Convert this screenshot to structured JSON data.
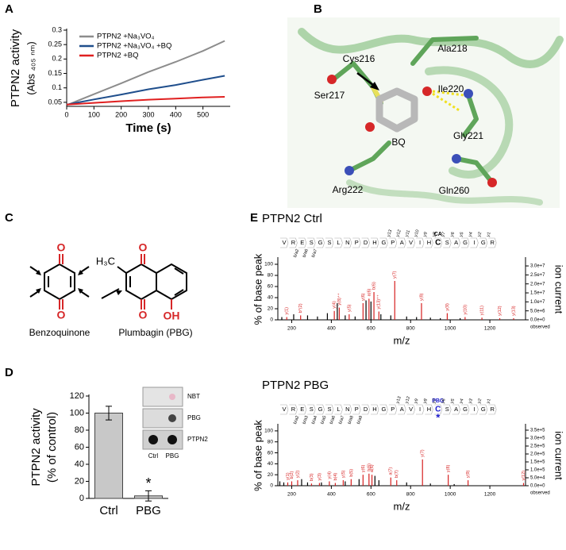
{
  "panel_letters": [
    "A",
    "B",
    "C",
    "D",
    "E"
  ],
  "structure_labels": [
    "Cys216",
    "Ala218",
    "Ser217",
    "Ile220",
    "BQ",
    "Arg222",
    "Gly221",
    "Gln260"
  ],
  "compounds": [
    "Benzoquinone",
    "Plumbagin (PBG)"
  ],
  "atoms": [
    "O",
    "O",
    "O",
    "O",
    "H₃C",
    "OH"
  ],
  "blot": {
    "rows": [
      "NBT",
      "PBG",
      "PTPN2"
    ],
    "columns": [
      "Ctrl",
      "PBG"
    ]
  },
  "chart_data": [
    {
      "type": "line",
      "xlabel": "Time (s)",
      "ylabel": [
        "PTPN2 activity",
        "(Abs ₄₀₅ ₙₘ)"
      ],
      "x": [
        0,
        100,
        200,
        300,
        400,
        500,
        580
      ],
      "xlim": [
        0,
        600
      ],
      "xticks": [
        0,
        100,
        200,
        300,
        400,
        500
      ],
      "ylim": [
        0.036,
        0.3
      ],
      "yticks": [
        0.05,
        0.1,
        0.15,
        0.2,
        0.25,
        0.3
      ],
      "series": [
        {
          "name": "PTPN2 +Na₃VO₄",
          "color": "#8c8c8c",
          "values": [
            0.04,
            0.078,
            0.116,
            0.155,
            0.19,
            0.228,
            0.263
          ]
        },
        {
          "name": "PTPN2 +Na₃VO₄ +BQ",
          "color": "#1f4e8c",
          "values": [
            0.042,
            0.06,
            0.077,
            0.095,
            0.11,
            0.128,
            0.142
          ]
        },
        {
          "name": "PTPN2 +BQ",
          "color": "#e02020",
          "values": [
            0.042,
            0.048,
            0.054,
            0.059,
            0.063,
            0.067,
            0.069
          ]
        }
      ]
    },
    {
      "type": "bar",
      "ylabel": [
        "PTPN2 activity",
        "(% of control)"
      ],
      "categories": [
        "Ctrl",
        "PBG"
      ],
      "values": [
        100,
        3
      ],
      "errors": [
        8,
        6
      ],
      "color": "#c8c8c8",
      "ylim": [
        0,
        120
      ],
      "yticks": [
        0,
        20,
        40,
        60,
        80,
        100,
        120
      ],
      "annotation": "*"
    },
    {
      "type": "spectrum",
      "title": "PTPN2 Ctrl",
      "xlabel": "m/z",
      "ylabel": "% of base peak",
      "y2label": "ion current",
      "note": "observed",
      "sequence": [
        "V",
        "R",
        "E",
        "S",
        "G",
        "S",
        "L",
        "N",
        "P",
        "D",
        "H",
        "G",
        "P",
        "A",
        "V",
        "I",
        "H",
        "C",
        "S",
        "A",
        "G",
        "I",
        "G",
        "R"
      ],
      "top_ions": [
        "y13",
        "y12",
        "y11",
        "y10",
        "y9",
        "y8",
        "y7",
        "y6",
        "y5",
        "y4",
        "y2",
        "y1"
      ],
      "bottom_ions": [
        "b/a2",
        "b/a6",
        "b/a7"
      ],
      "modification": {
        "labels": [
          "CA"
        ],
        "color": "#000000"
      },
      "xlim": [
        130,
        1380
      ],
      "xticks": [
        200,
        400,
        600,
        800,
        1000,
        1200
      ],
      "ylim": [
        0,
        110
      ],
      "yticks": [
        0,
        20,
        40,
        60,
        80,
        100
      ],
      "y2lim": [
        0,
        34000000
      ],
      "y2ticks": [
        {
          "value": 0,
          "label": "0.0e+0"
        },
        {
          "value": 5000000,
          "label": "5.0e+6"
        },
        {
          "value": 10000000,
          "label": "1.0e+7"
        },
        {
          "value": 15000000,
          "label": "1.5e+7"
        },
        {
          "value": 20000000,
          "label": "2.0e+7"
        },
        {
          "value": 25000000,
          "label": "2.5e+7"
        },
        {
          "value": 30000000,
          "label": "3.0e+7"
        }
      ],
      "series": [
        {
          "color": "#000000",
          "x": [
            150,
            210,
            280,
            330,
            380,
            430,
            470,
            520,
            575,
            600,
            650,
            700,
            780,
            830,
            900,
            950,
            1050
          ],
          "values": [
            5,
            10,
            8,
            6,
            12,
            30,
            8,
            6,
            35,
            33,
            10,
            8,
            6,
            5,
            4,
            3,
            3
          ]
        },
        {
          "color": "#d62020",
          "x": [
            175,
            245,
            415,
            440,
            490,
            560,
            590,
            615,
            640,
            720,
            855,
            985,
            1075,
            1160,
            1250,
            1320
          ],
          "values": [
            5,
            8,
            16,
            22,
            10,
            30,
            38,
            50,
            15,
            70,
            30,
            12,
            5,
            4,
            3,
            3
          ],
          "labels": [
            "y(1)",
            "b*(2)",
            "y(4)",
            "y(8)⁺⁺",
            "y(5)",
            "y(6)",
            "a(6)",
            "b(6)",
            "y(13)⁺⁺",
            "y(7)",
            "y(8)",
            "y(9)",
            "y(10)",
            "y(11)",
            "y(12)",
            "y(13)"
          ]
        }
      ]
    },
    {
      "type": "spectrum",
      "title": "PTPN2 PBG",
      "xlabel": "m/z",
      "ylabel": "% of base peak",
      "y2label": "ion current",
      "note": "observed",
      "sequence": [
        "V",
        "R",
        "E",
        "S",
        "G",
        "S",
        "L",
        "N",
        "P",
        "D",
        "H",
        "G",
        "P",
        "A",
        "V",
        "I",
        "H",
        "C",
        "S",
        "A",
        "G",
        "I",
        "G",
        "R"
      ],
      "top_ions": [
        "y13",
        "y12",
        "y9",
        "y8",
        "y7",
        "y6",
        "y5",
        "y4",
        "y3",
        "y2",
        "y1"
      ],
      "bottom_ions": [
        "b/a2",
        "b/a3",
        "b/a4",
        "b/a5",
        "b/a6",
        "b/a7",
        "b/a8",
        "b/a9"
      ],
      "modification": {
        "labels": [
          "PBG",
          "*"
        ],
        "color": "#1a1acc"
      },
      "xlim": [
        130,
        1380
      ],
      "xticks": [
        200,
        400,
        600,
        800,
        1000,
        1200
      ],
      "ylim": [
        0,
        110
      ],
      "yticks": [
        0,
        20,
        40,
        60,
        80,
        100
      ],
      "y2lim": [
        0,
        380000
      ],
      "y2ticks": [
        {
          "value": 0,
          "label": "0.0e+0"
        },
        {
          "value": 50000,
          "label": "5.0e+4"
        },
        {
          "value": 100000,
          "label": "1.0e+5"
        },
        {
          "value": 150000,
          "label": "1.5e+5"
        },
        {
          "value": 200000,
          "label": "2.0e+5"
        },
        {
          "value": 250000,
          "label": "2.5e+5"
        },
        {
          "value": 300000,
          "label": "3.0e+5"
        },
        {
          "value": 350000,
          "label": "3.5e+5"
        }
      ],
      "series": [
        {
          "color": "#000000",
          "x": [
            140,
            160,
            250,
            280,
            350,
            470,
            540,
            620,
            640,
            780,
            900,
            1020
          ],
          "values": [
            8,
            6,
            12,
            6,
            6,
            8,
            12,
            18,
            10,
            6,
            4,
            3
          ]
        },
        {
          "color": "#d62020",
          "x": [
            180,
            200,
            230,
            300,
            340,
            390,
            420,
            460,
            500,
            560,
            590,
            605,
            700,
            730,
            860,
            990,
            1090,
            1370
          ],
          "values": [
            6,
            8,
            10,
            4,
            5,
            8,
            5,
            10,
            12,
            20,
            22,
            20,
            15,
            10,
            48,
            20,
            10,
            5
          ],
          "labels": [
            "y(1)",
            "b(2)",
            "y(2)",
            "b(3)",
            "y(3)",
            "y(4)",
            "b(4)",
            "y(5)",
            "b(5)",
            "y(6)",
            "b(6)",
            "a(6)",
            "a(7)",
            "b(7)",
            "y(7)",
            "y(8)",
            "y(9)",
            "y(12)"
          ]
        }
      ]
    }
  ]
}
